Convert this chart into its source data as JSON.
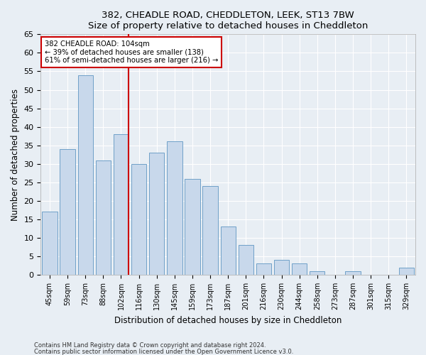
{
  "title1": "382, CHEADLE ROAD, CHEDDLETON, LEEK, ST13 7BW",
  "title2": "Size of property relative to detached houses in Cheddleton",
  "xlabel": "Distribution of detached houses by size in Cheddleton",
  "ylabel": "Number of detached properties",
  "categories": [
    "45sqm",
    "59sqm",
    "73sqm",
    "88sqm",
    "102sqm",
    "116sqm",
    "130sqm",
    "145sqm",
    "159sqm",
    "173sqm",
    "187sqm",
    "201sqm",
    "216sqm",
    "230sqm",
    "244sqm",
    "258sqm",
    "273sqm",
    "287sqm",
    "301sqm",
    "315sqm",
    "329sqm"
  ],
  "values": [
    17,
    34,
    54,
    31,
    38,
    30,
    33,
    36,
    26,
    24,
    13,
    8,
    3,
    4,
    3,
    1,
    0,
    1,
    0,
    0,
    2
  ],
  "bar_color": "#c8d8eb",
  "bar_edge_color": "#6fa0c8",
  "vline_index": 4,
  "vline_color": "#cc0000",
  "annotation_line1": "382 CHEADLE ROAD: 104sqm",
  "annotation_line2": "← 39% of detached houses are smaller (138)",
  "annotation_line3": "61% of semi-detached houses are larger (216) →",
  "annotation_box_color": "white",
  "annotation_box_edge_color": "#cc0000",
  "ylim": [
    0,
    65
  ],
  "yticks": [
    0,
    5,
    10,
    15,
    20,
    25,
    30,
    35,
    40,
    45,
    50,
    55,
    60,
    65
  ],
  "footer1": "Contains HM Land Registry data © Crown copyright and database right 2024.",
  "footer2": "Contains public sector information licensed under the Open Government Licence v3.0.",
  "bg_color": "#e8eef4",
  "grid_color": "#ffffff"
}
